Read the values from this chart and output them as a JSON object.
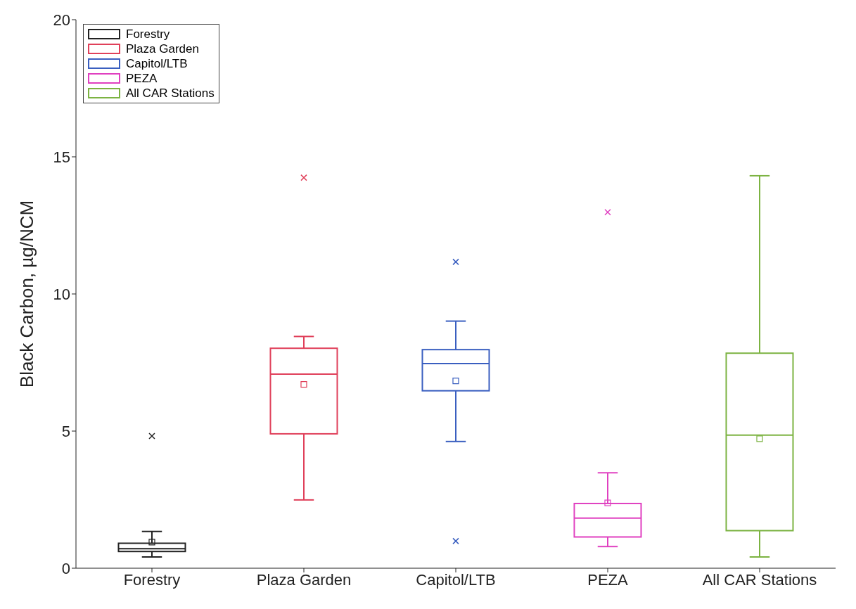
{
  "chart_data": {
    "type": "box",
    "ylabel": "Black Carbon, µg/NCM",
    "categories": [
      "Forestry",
      "Plaza Garden",
      "Capitol/LTB",
      "PEZA",
      "All CAR Stations"
    ],
    "series": [
      {
        "name": "Forestry",
        "color": "#222222",
        "boxes": [
          {
            "low": 0.41,
            "q1": 0.61,
            "median": 0.71,
            "q3": 0.91,
            "high": 1.34,
            "mean": 0.95,
            "outliers": [
              4.82
            ]
          },
          null,
          null,
          null,
          null
        ]
      },
      {
        "name": "Plaza Garden",
        "color": "#e0405a",
        "boxes": [
          null,
          {
            "low": 2.49,
            "q1": 4.9,
            "median": 7.08,
            "q3": 8.02,
            "high": 8.45,
            "mean": 6.7,
            "outliers": [
              14.24
            ]
          },
          null,
          null,
          null
        ]
      },
      {
        "name": "Capitol/LTB",
        "color": "#3a5fc0",
        "boxes": [
          null,
          null,
          {
            "low": 4.62,
            "q1": 6.47,
            "median": 7.46,
            "q3": 7.97,
            "high": 9.01,
            "mean": 6.83,
            "outliers": [
              11.17,
              0.99
            ]
          },
          null,
          null
        ]
      },
      {
        "name": "PEZA",
        "color": "#e040c0",
        "boxes": [
          null,
          null,
          null,
          {
            "low": 0.79,
            "q1": 1.14,
            "median": 1.83,
            "q3": 2.36,
            "high": 3.48,
            "mean": 2.38,
            "outliers": [
              12.98
            ]
          },
          null
        ]
      },
      {
        "name": "All CAR Stations",
        "color": "#7cb342",
        "boxes": [
          null,
          null,
          null,
          null,
          {
            "low": 0.41,
            "q1": 1.37,
            "median": 4.85,
            "q3": 7.84,
            "high": 14.31,
            "mean": 4.72
          }
        ]
      }
    ],
    "ylim": [
      0,
      20
    ],
    "yticks": [
      0,
      5,
      10,
      15,
      20
    ],
    "grid": false,
    "legend": "top left",
    "marker": "square"
  }
}
